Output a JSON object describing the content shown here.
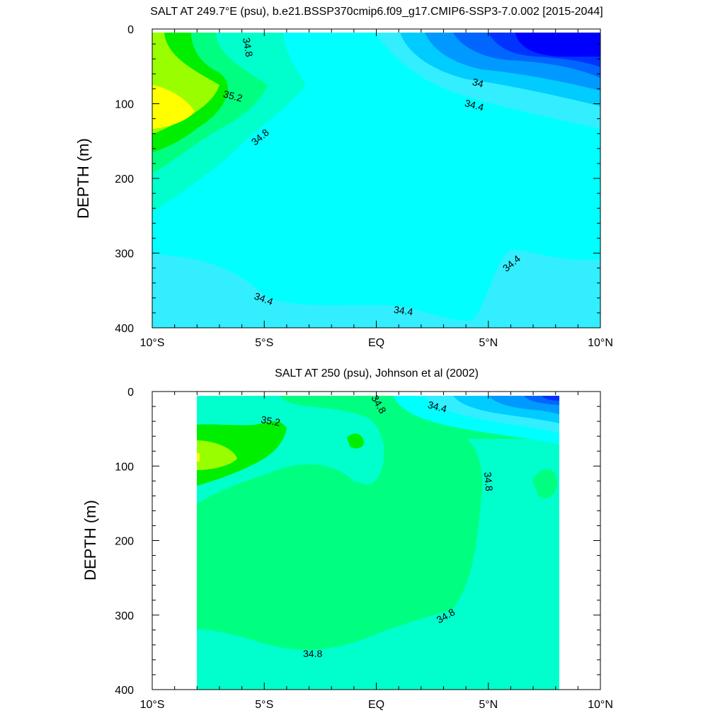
{
  "colors": {
    "s3370": "#0000ff",
    "s3390": "#0033ff",
    "s3410": "#0066ff",
    "s3420": "#0099ff",
    "s3430": "#00ccff",
    "s3440": "#33eeff",
    "s3460": "#00ffff",
    "s3480": "#00ffcc",
    "s3500": "#00ff80",
    "s3520": "#00ee00",
    "s3540": "#99ff00",
    "s3560": "#ffff00"
  },
  "chart_data": [
    {
      "type": "contour",
      "title": "SALT AT 249.7°E (psu), b.e21.BSSP370cmip6.f09_g17.CMIP6-SSP3-7.0.002 [2015-2044]",
      "xlabel": "",
      "ylabel": "DEPTH (m)",
      "xlim": [
        -10,
        10
      ],
      "ylim": [
        400,
        0
      ],
      "x_ticks": [
        -10,
        -5,
        0,
        5,
        10
      ],
      "x_tick_labels": [
        "10°S",
        "5°S",
        "EQ",
        "5°N",
        "10°N"
      ],
      "y_ticks": [
        0,
        100,
        200,
        300,
        400
      ],
      "y_tick_labels": [
        "0",
        "100",
        "200",
        "300",
        "400"
      ],
      "contour_labels": [
        "34.8",
        "35.2",
        "34.8",
        "34",
        "34.4",
        "34.4",
        "34.4",
        "34.4"
      ]
    },
    {
      "type": "contour",
      "title": "SALT AT 250 (psu), Johnson et al (2002)",
      "xlabel": "",
      "ylabel": "DEPTH (m)",
      "xlim": [
        -10,
        10
      ],
      "ylim": [
        400,
        0
      ],
      "x_ticks": [
        -10,
        -5,
        0,
        5,
        10
      ],
      "x_tick_labels": [
        "10°S",
        "5°S",
        "EQ",
        "5°N",
        "10°N"
      ],
      "y_ticks": [
        0,
        100,
        200,
        300,
        400
      ],
      "y_tick_labels": [
        "0",
        "100",
        "200",
        "300",
        "400"
      ],
      "contour_labels": [
        "35.2",
        "34.8",
        "34.4",
        "34.8",
        "34.8",
        "34.8"
      ]
    }
  ]
}
